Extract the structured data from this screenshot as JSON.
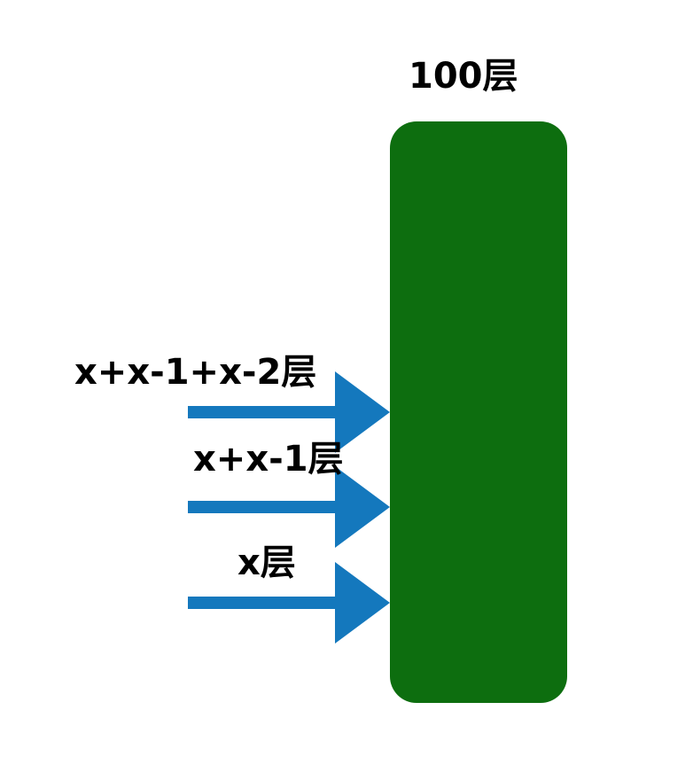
{
  "tower": {
    "label": "100层",
    "color": "#0d6e0f"
  },
  "arrows": [
    {
      "label": "x+x-1+x-2层"
    },
    {
      "label": "x+x-1层"
    },
    {
      "label": "x层"
    }
  ],
  "arrow_color": "#1478bd"
}
